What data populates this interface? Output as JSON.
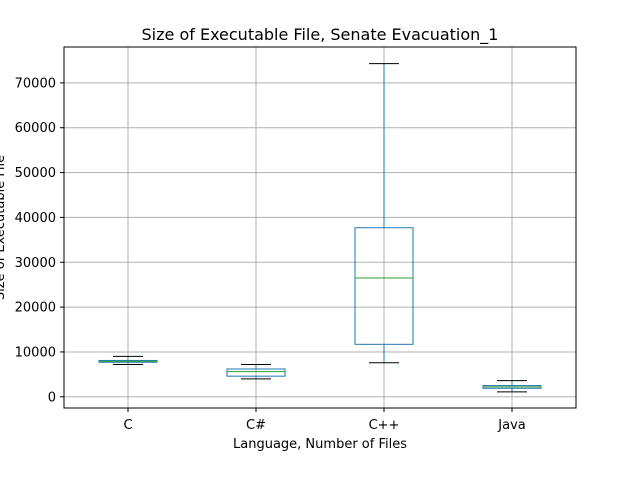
{
  "chart_data": {
    "type": "box",
    "title": "Size of Executable File, Senate Evacuation_1",
    "xlabel": "Language, Number of Files",
    "ylabel": "Size of Executable File",
    "ylim": [
      -2500,
      78000
    ],
    "yticks": [
      0,
      10000,
      20000,
      30000,
      40000,
      50000,
      60000,
      70000
    ],
    "grid": true,
    "colors": {
      "box": "#1f77b4",
      "median": "#2ca02c",
      "whisker": "#1f77b4",
      "cap": "#000000",
      "grid": "#b0b0b0"
    },
    "categories": [
      "C",
      "C#",
      "C++",
      "Java"
    ],
    "boxes": [
      {
        "label": "C",
        "whislo": 7200,
        "q1": 7700,
        "med": 7900,
        "q3": 8100,
        "whishi": 9000
      },
      {
        "label": "C#",
        "whislo": 4000,
        "q1": 4600,
        "med": 5600,
        "q3": 6200,
        "whishi": 7200
      },
      {
        "label": "C++",
        "whislo": 7600,
        "q1": 11700,
        "med": 26500,
        "q3": 37700,
        "whishi": 74300
      },
      {
        "label": "Java",
        "whislo": 1100,
        "q1": 1900,
        "med": 2200,
        "q3": 2500,
        "whishi": 3600
      }
    ]
  }
}
